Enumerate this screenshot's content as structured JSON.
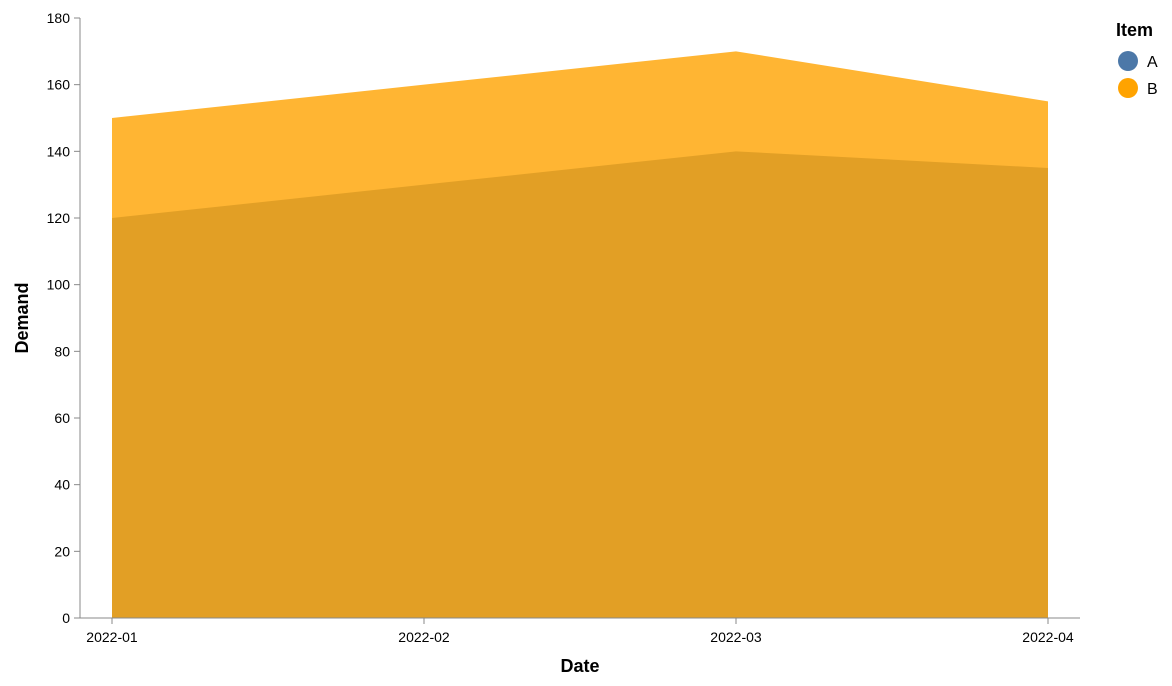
{
  "chart_data": {
    "type": "area",
    "x": [
      "2022-01",
      "2022-02",
      "2022-03",
      "2022-04"
    ],
    "series": [
      {
        "name": "A",
        "values": [
          120,
          130,
          140,
          135
        ],
        "color": "#4c78a8"
      },
      {
        "name": "B",
        "values": [
          150,
          160,
          170,
          155
        ],
        "color": "#ffa300"
      }
    ],
    "overlap": true,
    "xlabel": "Date",
    "ylabel": "Demand",
    "ylim": [
      0,
      180
    ],
    "yticks": [
      0,
      20,
      40,
      60,
      80,
      100,
      120,
      140,
      160,
      180
    ],
    "grid": false,
    "legend": {
      "title": "Item",
      "placement": "top-right"
    }
  }
}
